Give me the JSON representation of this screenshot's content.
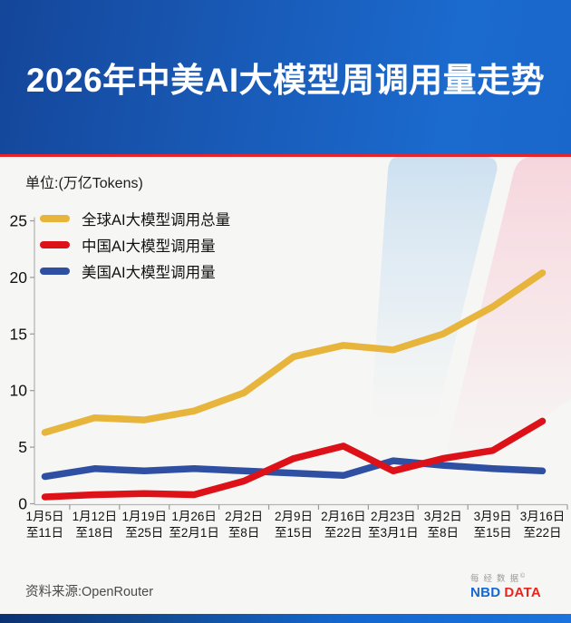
{
  "header": {
    "title": "2026年中美AI大模型周调用量走势"
  },
  "unit_label": "单位:(万亿Tokens)",
  "chart_data": {
    "type": "line",
    "title": "2026年中美AI大模型周调用量走势",
    "ylabel": "万亿Tokens",
    "ylim": [
      0,
      25
    ],
    "yticks": [
      0,
      5,
      10,
      15,
      20,
      25
    ],
    "grid": false,
    "legend_position": "top-left",
    "categories": [
      [
        "1月5日",
        "至11日"
      ],
      [
        "1月12日",
        "至18日"
      ],
      [
        "1月19日",
        "至25日"
      ],
      [
        "1月26日",
        "至2月1日"
      ],
      [
        "2月2日",
        "至8日"
      ],
      [
        "2月9日",
        "至15日"
      ],
      [
        "2月16日",
        "至22日"
      ],
      [
        "2月23日",
        "至3月1日"
      ],
      [
        "3月2日",
        "至8日"
      ],
      [
        "3月9日",
        "至15日"
      ],
      [
        "3月16日",
        "至22日"
      ]
    ],
    "series": [
      {
        "key": "global",
        "name": "全球AI大模型调用总量",
        "color": "#E7B43C",
        "values": [
          6.3,
          7.6,
          7.4,
          8.2,
          9.8,
          13.0,
          14.0,
          13.6,
          15.0,
          17.4,
          20.4
        ]
      },
      {
        "key": "china",
        "name": "中国AI大模型调用量",
        "color": "#DD1218",
        "values": [
          0.6,
          0.8,
          0.9,
          0.8,
          2.0,
          4.0,
          5.1,
          2.9,
          4.0,
          4.7,
          7.3
        ]
      },
      {
        "key": "usa",
        "name": "美国AI大模型调用量",
        "color": "#2F4FA2",
        "values": [
          2.4,
          3.1,
          2.9,
          3.1,
          2.9,
          2.7,
          2.5,
          3.8,
          3.4,
          3.1,
          2.9
        ]
      }
    ]
  },
  "footer": {
    "source": "资料来源:OpenRouter"
  },
  "logo": {
    "cn": "每经数据",
    "mark": "©",
    "nbd": "NBD",
    "data": "DATA"
  }
}
